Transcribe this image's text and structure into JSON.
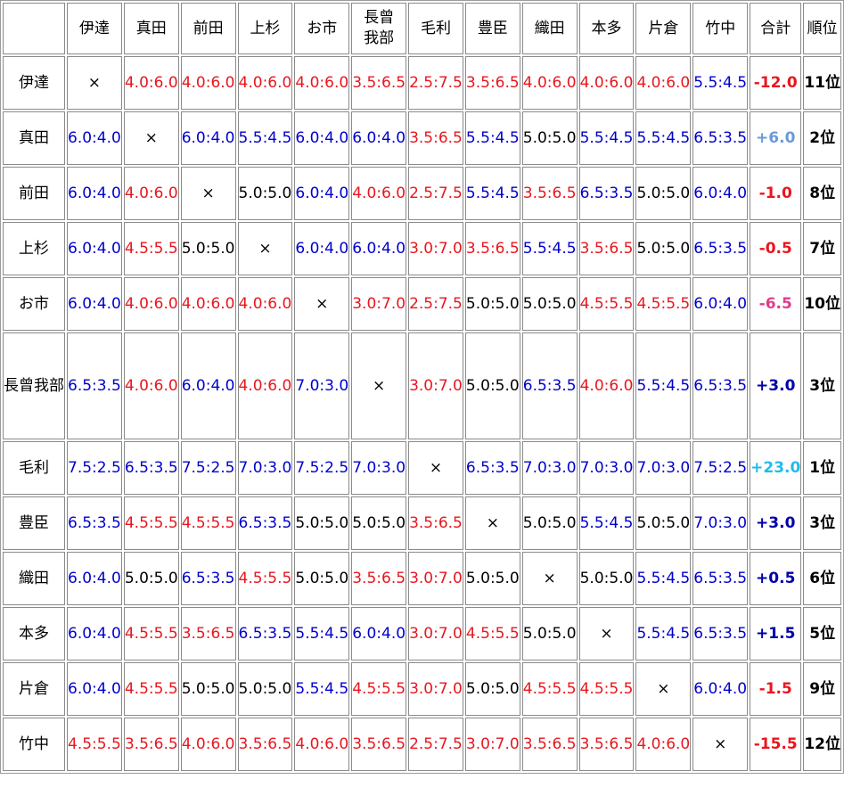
{
  "corner": "",
  "columns": [
    "伊達",
    "真田",
    "前田",
    "上杉",
    "お市",
    "長曾我部",
    "毛利",
    "豊臣",
    "織田",
    "本多",
    "片倉",
    "竹中"
  ],
  "total_label": "合計",
  "rank_label": "順位",
  "self_mark": "×",
  "colors": {
    "win": "#0000cc",
    "lose": "#e8161e",
    "draw": "#000000"
  },
  "rows": [
    {
      "name": "伊達",
      "cells": [
        "×",
        "4.0:6.0",
        "4.0:6.0",
        "4.0:6.0",
        "4.0:6.0",
        "3.5:6.5",
        "2.5:7.5",
        "3.5:6.5",
        "4.0:6.0",
        "4.0:6.0",
        "4.0:6.0",
        "5.5:4.5"
      ],
      "total": "-12.0",
      "total_color": "#e8161e",
      "rank": "11位"
    },
    {
      "name": "真田",
      "cells": [
        "6.0:4.0",
        "×",
        "6.0:4.0",
        "5.5:4.5",
        "6.0:4.0",
        "6.0:4.0",
        "3.5:6.5",
        "5.5:4.5",
        "5.0:5.0",
        "5.5:4.5",
        "5.5:4.5",
        "6.5:3.5"
      ],
      "total": "+6.0",
      "total_color": "#6a9ad8",
      "rank": "2位"
    },
    {
      "name": "前田",
      "cells": [
        "6.0:4.0",
        "4.0:6.0",
        "×",
        "5.0:5.0",
        "6.0:4.0",
        "4.0:6.0",
        "2.5:7.5",
        "5.5:4.5",
        "3.5:6.5",
        "6.5:3.5",
        "5.0:5.0",
        "6.0:4.0"
      ],
      "total": "-1.0",
      "total_color": "#e8161e",
      "rank": "8位"
    },
    {
      "name": "上杉",
      "cells": [
        "6.0:4.0",
        "4.5:5.5",
        "5.0:5.0",
        "×",
        "6.0:4.0",
        "6.0:4.0",
        "3.0:7.0",
        "3.5:6.5",
        "5.5:4.5",
        "3.5:6.5",
        "5.0:5.0",
        "6.5:3.5"
      ],
      "total": "-0.5",
      "total_color": "#e8161e",
      "rank": "7位"
    },
    {
      "name": "お市",
      "cells": [
        "6.0:4.0",
        "4.0:6.0",
        "4.0:6.0",
        "4.0:6.0",
        "×",
        "3.0:7.0",
        "2.5:7.5",
        "5.0:5.0",
        "5.0:5.0",
        "4.5:5.5",
        "4.5:5.5",
        "6.0:4.0"
      ],
      "total": "-6.5",
      "total_color": "#e03c8a",
      "rank": "10位"
    },
    {
      "name": "長曾我部",
      "cells": [
        "6.5:3.5",
        "4.0:6.0",
        "6.0:4.0",
        "4.0:6.0",
        "7.0:3.0",
        "×",
        "3.0:7.0",
        "5.0:5.0",
        "6.5:3.5",
        "4.0:6.0",
        "5.5:4.5",
        "6.5:3.5"
      ],
      "total": "+3.0",
      "total_color": "#0000aa",
      "rank": "3位"
    },
    {
      "name": "毛利",
      "cells": [
        "7.5:2.5",
        "6.5:3.5",
        "7.5:2.5",
        "7.0:3.0",
        "7.5:2.5",
        "7.0:3.0",
        "×",
        "6.5:3.5",
        "7.0:3.0",
        "7.0:3.0",
        "7.0:3.0",
        "7.5:2.5"
      ],
      "total": "+23.0",
      "total_color": "#22bbee",
      "rank": "1位"
    },
    {
      "name": "豊臣",
      "cells": [
        "6.5:3.5",
        "4.5:5.5",
        "4.5:5.5",
        "6.5:3.5",
        "5.0:5.0",
        "5.0:5.0",
        "3.5:6.5",
        "×",
        "5.0:5.0",
        "5.5:4.5",
        "5.0:5.0",
        "7.0:3.0"
      ],
      "total": "+3.0",
      "total_color": "#0000aa",
      "rank": "3位"
    },
    {
      "name": "織田",
      "cells": [
        "6.0:4.0",
        "5.0:5.0",
        "6.5:3.5",
        "4.5:5.5",
        "5.0:5.0",
        "3.5:6.5",
        "3.0:7.0",
        "5.0:5.0",
        "×",
        "5.0:5.0",
        "5.5:4.5",
        "6.5:3.5"
      ],
      "total": "+0.5",
      "total_color": "#0000aa",
      "rank": "6位"
    },
    {
      "name": "本多",
      "cells": [
        "6.0:4.0",
        "4.5:5.5",
        "3.5:6.5",
        "6.5:3.5",
        "5.5:4.5",
        "6.0:4.0",
        "3.0:7.0",
        "4.5:5.5",
        "5.0:5.0",
        "×",
        "5.5:4.5",
        "6.5:3.5"
      ],
      "total": "+1.5",
      "total_color": "#0000aa",
      "rank": "5位"
    },
    {
      "name": "片倉",
      "cells": [
        "6.0:4.0",
        "4.5:5.5",
        "5.0:5.0",
        "5.0:5.0",
        "5.5:4.5",
        "4.5:5.5",
        "3.0:7.0",
        "5.0:5.0",
        "4.5:5.5",
        "4.5:5.5",
        "×",
        "6.0:4.0"
      ],
      "total": "-1.5",
      "total_color": "#e8161e",
      "rank": "9位"
    },
    {
      "name": "竹中",
      "cells": [
        "4.5:5.5",
        "3.5:6.5",
        "4.0:6.0",
        "3.5:6.5",
        "4.0:6.0",
        "3.5:6.5",
        "2.5:7.5",
        "3.0:7.0",
        "3.5:6.5",
        "3.5:6.5",
        "4.0:6.0",
        "×"
      ],
      "total": "-15.5",
      "total_color": "#e8161e",
      "rank": "12位"
    }
  ]
}
